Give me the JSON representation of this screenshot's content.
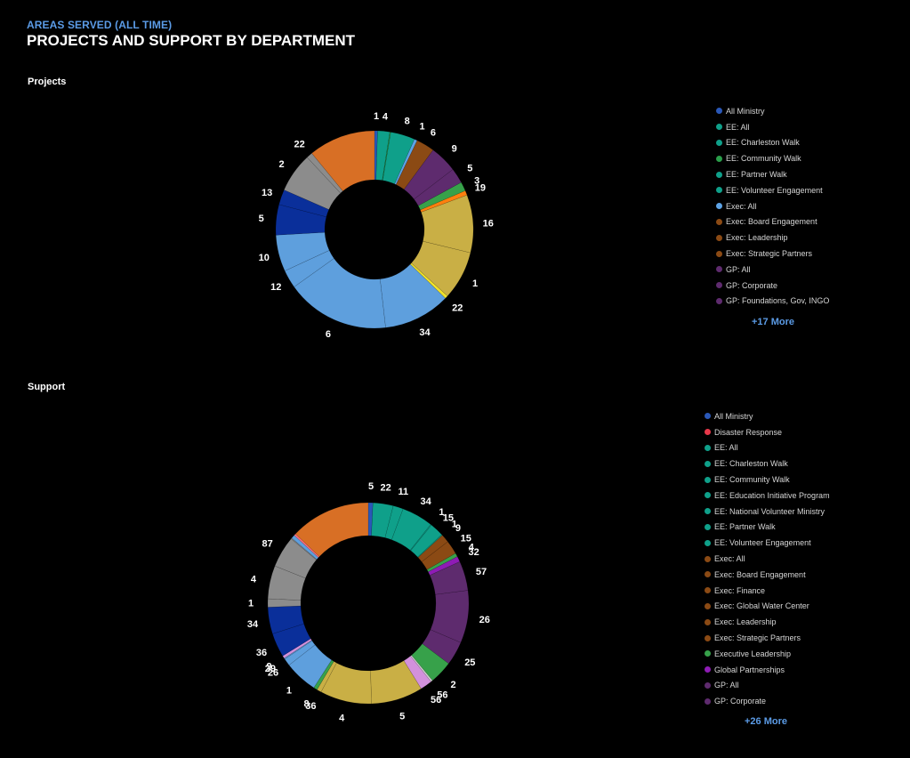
{
  "header": {
    "eyebrow": "AREAS SERVED (ALL TIME)",
    "title": "PROJECTS AND SUPPORT BY DEPARTMENT"
  },
  "chart_data": [
    {
      "type": "pie",
      "title": "Projects",
      "donut": true,
      "legend_position": "right",
      "slices": [
        {
          "value": 1,
          "color": "#2a58b8"
        },
        {
          "value": 4,
          "color": "#0fa08a"
        },
        {
          "value": 0.3,
          "color": "#2a9e4a"
        },
        {
          "value": 8,
          "color": "#0fa08a"
        },
        {
          "value": 1,
          "color": "#5da3e6"
        },
        {
          "value": 6,
          "color": "#8b4a14"
        },
        {
          "value": 9,
          "color": "#5e2b6e"
        },
        {
          "value": 5,
          "color": "#5e2b6e"
        },
        {
          "value": 3,
          "color": "#37a14a"
        },
        {
          "value": 1.5,
          "color": "#ff7f0e"
        },
        {
          "value": 19,
          "color": "#c9af45"
        },
        {
          "value": 16,
          "color": "#c9af45"
        },
        {
          "value": 1,
          "color": "#f0e22a"
        },
        {
          "value": 22,
          "color": "#5e9fdd"
        },
        {
          "value": 34,
          "color": "#5e9fdd"
        },
        {
          "value": 6,
          "color": "#5e9fdd"
        },
        {
          "value": 12,
          "color": "#5e9fdd"
        },
        {
          "value": 10,
          "color": "#0a2f9a"
        },
        {
          "value": 5,
          "color": "#0a2f9a"
        },
        {
          "value": 13,
          "color": "#8c8c8c"
        },
        {
          "value": 2,
          "color": "#8c8c8c"
        },
        {
          "value": 22,
          "color": "#d86f25"
        }
      ],
      "data_labels": [
        "1",
        "4",
        "8",
        "1",
        "6",
        "9",
        "5",
        "3",
        "19",
        "16",
        "1",
        "22",
        "34",
        "6",
        "12",
        "10",
        "5",
        "13",
        "2",
        "22"
      ],
      "legend": [
        {
          "label": "All Ministry",
          "color": "#2a58b8"
        },
        {
          "label": "EE: All",
          "color": "#0fa08a"
        },
        {
          "label": "EE: Charleston Walk",
          "color": "#0fa08a"
        },
        {
          "label": "EE: Community Walk",
          "color": "#2a9e4a"
        },
        {
          "label": "EE: Partner Walk",
          "color": "#0fa08a"
        },
        {
          "label": "EE: Volunteer Engagement",
          "color": "#0fa08a"
        },
        {
          "label": "Exec: All",
          "color": "#5da3e6"
        },
        {
          "label": "Exec: Board Engagement",
          "color": "#8b4a14"
        },
        {
          "label": "Exec: Leadership",
          "color": "#8b4a14"
        },
        {
          "label": "Exec: Strategic Partners",
          "color": "#8b4a14"
        },
        {
          "label": "GP: All",
          "color": "#5e2b6e"
        },
        {
          "label": "GP: Corporate",
          "color": "#5e2b6e"
        },
        {
          "label": "GP: Foundations, Gov, INGO",
          "color": "#5e2b6e"
        }
      ],
      "more_label": "+17 More"
    },
    {
      "type": "pie",
      "title": "Support",
      "donut": true,
      "legend_position": "right",
      "slices": [
        {
          "value": 5,
          "color": "#2a58b8"
        },
        {
          "value": 22,
          "color": "#0fa08a"
        },
        {
          "value": 11,
          "color": "#0fa08a"
        },
        {
          "value": 34,
          "color": "#0fa08a"
        },
        {
          "value": 1,
          "color": "#0fa08a"
        },
        {
          "value": 15,
          "color": "#0fa08a"
        },
        {
          "value": 1,
          "color": "#0fa08a"
        },
        {
          "value": 9,
          "color": "#8b4a14"
        },
        {
          "value": 15,
          "color": "#8b4a14"
        },
        {
          "value": 4,
          "color": "#37a14a"
        },
        {
          "value": 6,
          "color": "#8e1cb5"
        },
        {
          "value": 32,
          "color": "#5e2b6e"
        },
        {
          "value": 57,
          "color": "#5e2b6e"
        },
        {
          "value": 26,
          "color": "#5e2b6e"
        },
        {
          "value": 25,
          "color": "#37a14a"
        },
        {
          "value": 2,
          "color": "#cfcfcf"
        },
        {
          "value": 13,
          "color": "#d391dc"
        },
        {
          "value": 56,
          "color": "#c9af45"
        },
        {
          "value": 56,
          "color": "#c9af45"
        },
        {
          "value": 5,
          "color": "#c9af45"
        },
        {
          "value": 4,
          "color": "#37a14a"
        },
        {
          "value": 36,
          "color": "#5e9fdd"
        },
        {
          "value": 8,
          "color": "#5e9fdd"
        },
        {
          "value": 1,
          "color": "#5e9fdd"
        },
        {
          "value": 3,
          "color": "#d391dc"
        },
        {
          "value": 26,
          "color": "#0a2f9a"
        },
        {
          "value": 29,
          "color": "#0a2f9a"
        },
        {
          "value": 9,
          "color": "#8c8c8c"
        },
        {
          "value": 36,
          "color": "#8c8c8c"
        },
        {
          "value": 34,
          "color": "#8c8c8c"
        },
        {
          "value": 1,
          "color": "#8c8c8c"
        },
        {
          "value": 4,
          "color": "#5e9fdd"
        },
        {
          "value": 2,
          "color": "#ff6f7f"
        },
        {
          "value": 87,
          "color": "#d86f25"
        }
      ],
      "data_labels": [
        "5",
        "22",
        "11",
        "34",
        "1",
        "15",
        "1",
        "9",
        "15",
        "4",
        "32",
        "57",
        "26",
        "25",
        "2",
        "56",
        "56",
        "5",
        "4",
        "36",
        "8",
        "1",
        "26",
        "29",
        "9",
        "36",
        "34",
        "1",
        "4",
        "87"
      ],
      "legend": [
        {
          "label": "All Ministry",
          "color": "#2a58b8"
        },
        {
          "label": "Disaster Response",
          "color": "#e8384a"
        },
        {
          "label": "EE: All",
          "color": "#0fa08a"
        },
        {
          "label": "EE: Charleston Walk",
          "color": "#0fa08a"
        },
        {
          "label": "EE: Community Walk",
          "color": "#0fa08a"
        },
        {
          "label": "EE: Education Initiative Program",
          "color": "#0fa08a"
        },
        {
          "label": "EE: National Volunteer Ministry",
          "color": "#0fa08a"
        },
        {
          "label": "EE: Partner Walk",
          "color": "#0fa08a"
        },
        {
          "label": "EE: Volunteer Engagement",
          "color": "#0fa08a"
        },
        {
          "label": "Exec: All",
          "color": "#8b4a14"
        },
        {
          "label": "Exec: Board Engagement",
          "color": "#8b4a14"
        },
        {
          "label": "Exec: Finance",
          "color": "#8b4a14"
        },
        {
          "label": "Exec: Global Water Center",
          "color": "#8b4a14"
        },
        {
          "label": "Exec: Leadership",
          "color": "#8b4a14"
        },
        {
          "label": "Exec: Strategic Partners",
          "color": "#8b4a14"
        },
        {
          "label": "Executive Leadership",
          "color": "#37a14a"
        },
        {
          "label": "Global Partnerships",
          "color": "#8e1cb5"
        },
        {
          "label": "GP: All",
          "color": "#5e2b6e"
        },
        {
          "label": "GP: Corporate",
          "color": "#5e2b6e"
        }
      ],
      "more_label": "+26 More"
    }
  ]
}
